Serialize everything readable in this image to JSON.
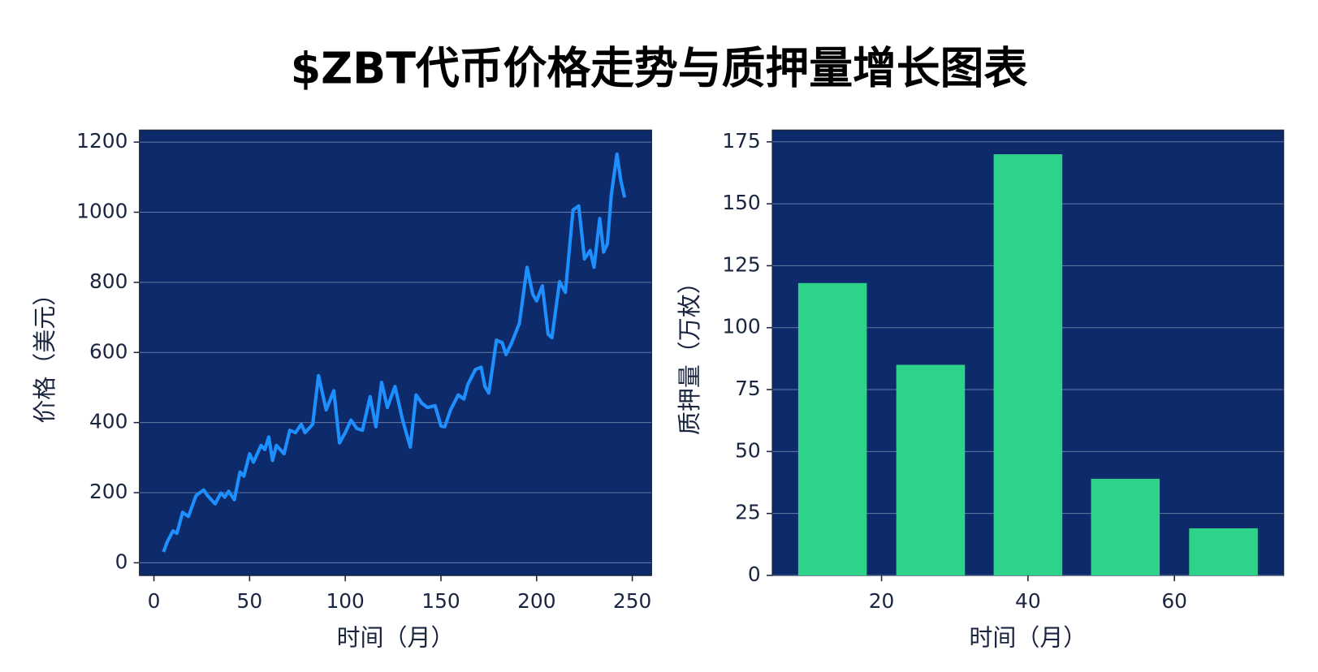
{
  "title": "$ZBT代币价格走势与质押量增长图表",
  "chart_data": [
    {
      "type": "line",
      "xlabel": "时间（月）",
      "ylabel": "价格（美元）",
      "x": [
        5,
        7,
        10,
        12,
        15,
        18,
        22,
        26,
        28,
        32,
        35,
        37,
        39,
        42,
        45,
        47,
        50,
        52,
        56,
        58,
        60,
        62,
        64,
        68,
        71,
        74,
        77,
        79,
        83,
        86,
        90,
        94,
        97,
        100,
        103,
        106,
        109,
        113,
        116,
        119,
        122,
        126,
        130,
        134,
        137,
        140,
        143,
        147,
        150,
        152,
        155,
        159,
        162,
        164,
        168,
        171,
        173,
        175,
        179,
        182,
        184,
        187,
        191,
        195,
        198,
        200,
        203,
        206,
        208,
        212,
        215,
        219,
        222,
        225,
        228,
        230,
        233,
        235,
        237,
        239,
        242,
        244,
        246
      ],
      "values": [
        31,
        60,
        91,
        84,
        144,
        132,
        192,
        208,
        192,
        168,
        199,
        187,
        204,
        180,
        259,
        247,
        311,
        287,
        335,
        323,
        359,
        292,
        335,
        311,
        378,
        371,
        395,
        371,
        395,
        534,
        436,
        491,
        342,
        371,
        407,
        383,
        378,
        474,
        388,
        515,
        443,
        503,
        407,
        330,
        479,
        455,
        443,
        448,
        390,
        388,
        436,
        479,
        467,
        508,
        551,
        558,
        503,
        484,
        635,
        628,
        594,
        628,
        683,
        843,
        766,
        747,
        790,
        652,
        642,
        802,
        771,
        1006,
        1018,
        867,
        891,
        843,
        982,
        886,
        910,
        1049,
        1166,
        1090,
        1042
      ],
      "color": "#1e8fff",
      "background": "#0d2a6b",
      "grid": true,
      "xlim": [
        -7.5,
        260
      ],
      "xticks": [
        0,
        50,
        100,
        150,
        200,
        250
      ],
      "ylim": [
        -36,
        1234
      ],
      "yticks": [
        0,
        200,
        400,
        600,
        800,
        1000,
        1200
      ]
    },
    {
      "type": "bar",
      "xlabel": "时间（月）",
      "ylabel": "质押量（万枚）",
      "x": [
        13.3,
        26.7,
        40,
        53.3,
        66.7
      ],
      "values": [
        118,
        85,
        170,
        39,
        19
      ],
      "color": "#2ed38a",
      "background": "#0d2a6b",
      "grid": true,
      "xlim": [
        5.1,
        74.9
      ],
      "xticks": [
        20,
        40,
        60
      ],
      "ylim": [
        0,
        179.7
      ],
      "yticks": [
        0,
        25,
        50,
        75,
        100,
        125,
        150,
        175
      ]
    }
  ]
}
